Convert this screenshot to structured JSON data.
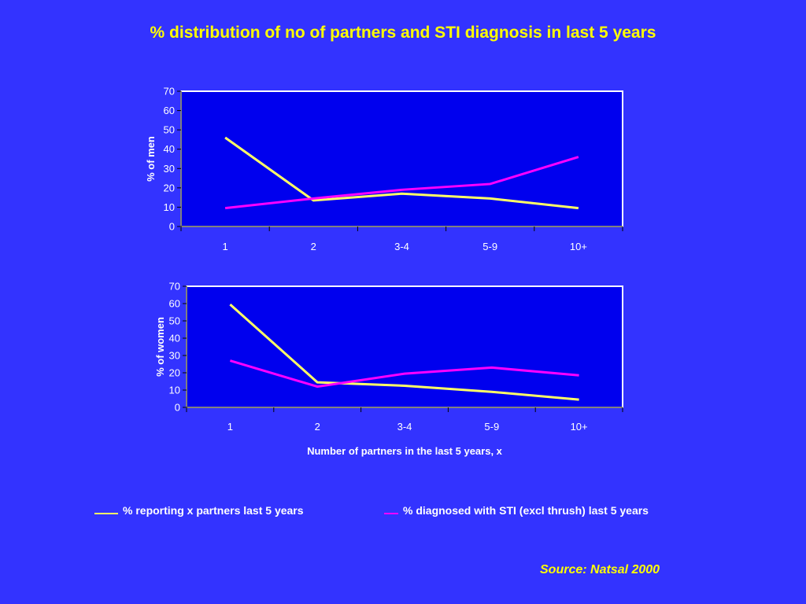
{
  "title": "% distribution of no of partners and STI diagnosis in last 5 years",
  "colors": {
    "background": "#3333ff",
    "plot_area": "#0000ee",
    "reporting_series": "#ffff66",
    "diagnosed_series": "#ff00ff",
    "title": "#ffff00"
  },
  "chart_data": [
    {
      "type": "line",
      "categories": [
        "1",
        "2",
        "3-4",
        "5-9",
        "10+"
      ],
      "ylabel": "% of men",
      "xlabel": "",
      "ylim": [
        0,
        70
      ],
      "yticks": [
        0,
        10,
        20,
        30,
        40,
        50,
        60,
        70
      ],
      "grid": false,
      "series": [
        {
          "name": "% reporting x partners last 5 years",
          "values": [
            46,
            13.5,
            17,
            14.5,
            9.5
          ]
        },
        {
          "name": "% diagnosed with STI (excl thrush) last 5 years",
          "values": [
            9.5,
            14.5,
            19,
            22,
            36
          ]
        }
      ]
    },
    {
      "type": "line",
      "categories": [
        "1",
        "2",
        "3-4",
        "5-9",
        "10+"
      ],
      "ylabel": "% of women",
      "xlabel": "Number of partners in the last 5 years, x",
      "ylim": [
        0,
        70
      ],
      "yticks": [
        0,
        10,
        20,
        30,
        40,
        50,
        60,
        70
      ],
      "grid": false,
      "series": [
        {
          "name": "% reporting x partners last 5 years",
          "values": [
            59.5,
            14.5,
            12.5,
            9,
            4.5
          ]
        },
        {
          "name": "% diagnosed with STI (excl thrush) last 5 years",
          "values": [
            27,
            12,
            19.5,
            23,
            18.5
          ]
        }
      ]
    }
  ],
  "legend": {
    "reporting_label": "% reporting x partners last 5 years",
    "diagnosed_label": "% diagnosed with STI (excl thrush) last 5 years"
  },
  "source": "Source:  Natsal 2000"
}
